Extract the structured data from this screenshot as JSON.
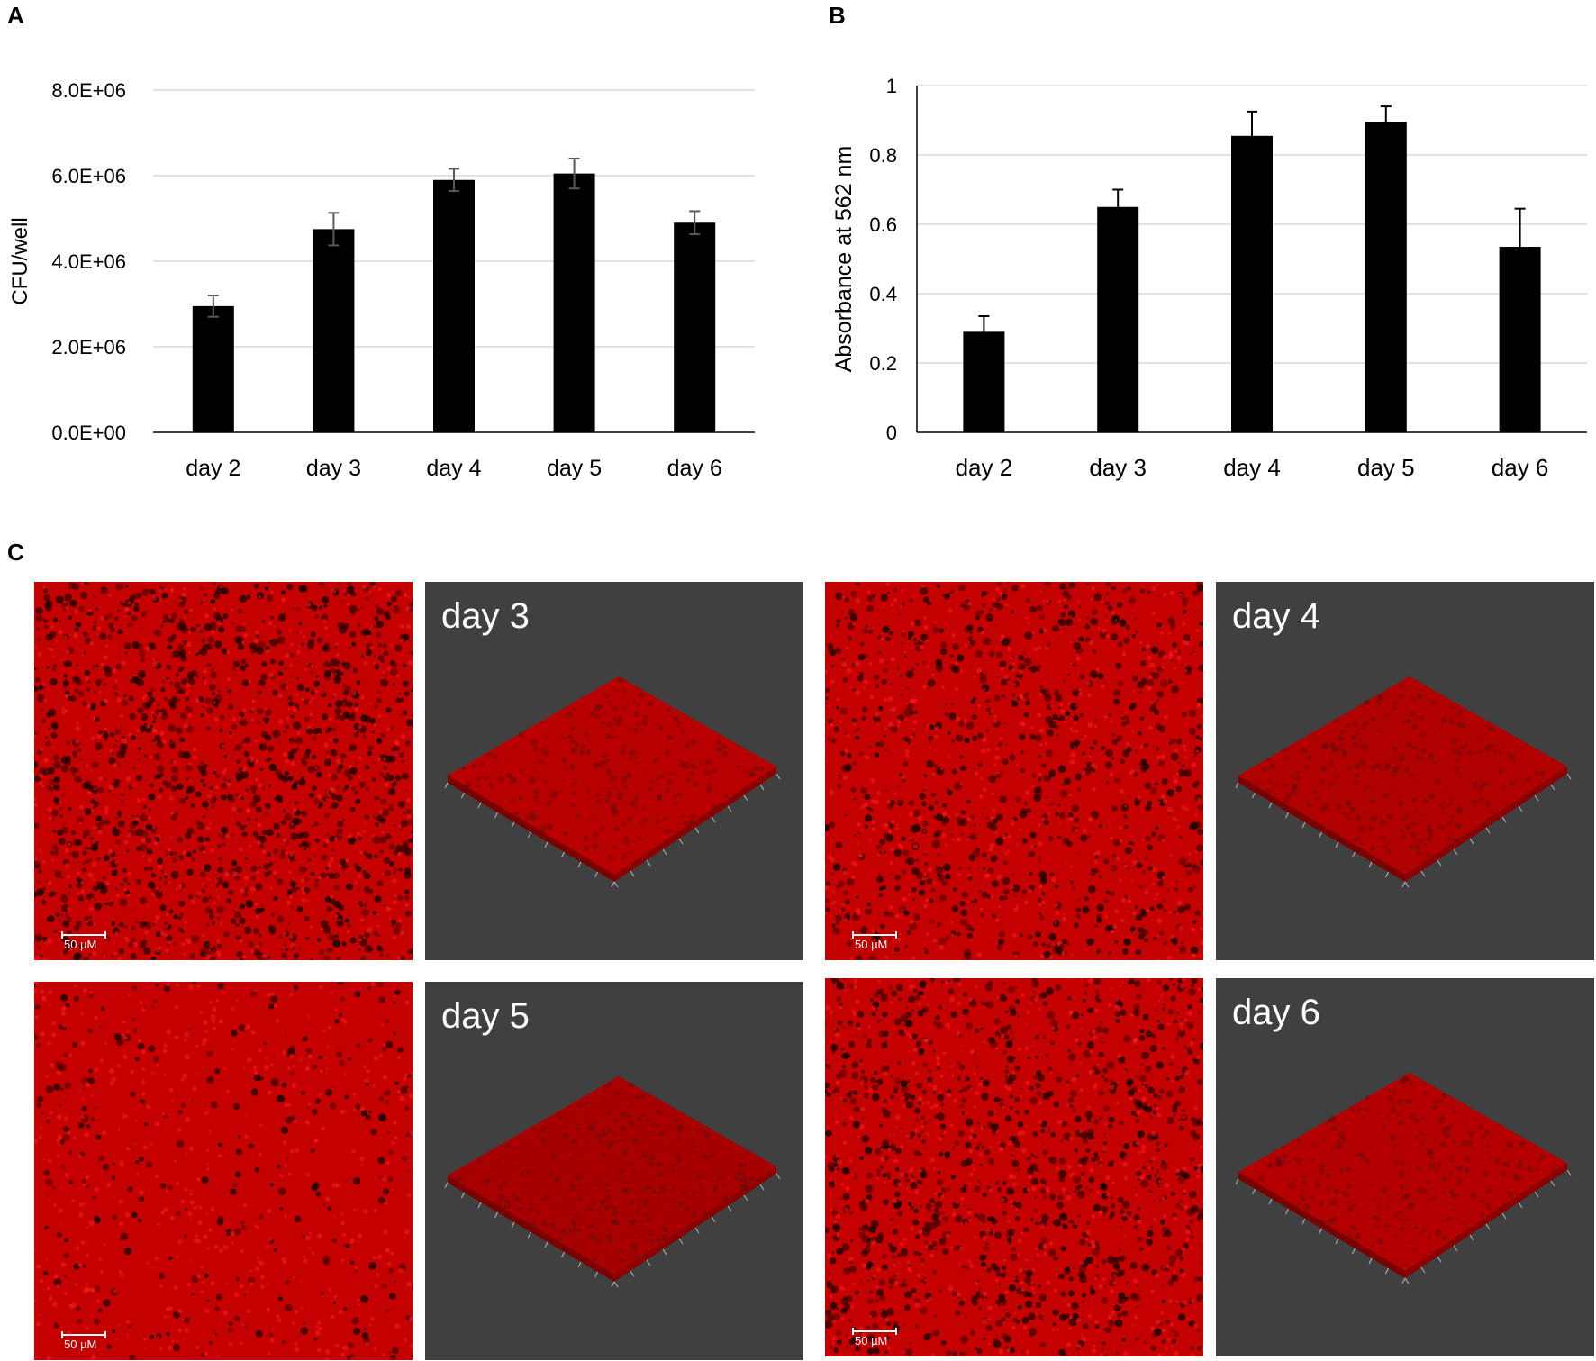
{
  "panels": {
    "a": "A",
    "b": "B",
    "c": "C"
  },
  "chart_data": [
    {
      "type": "bar",
      "panel": "A",
      "categories": [
        "day 2",
        "day 3",
        "day 4",
        "day 5",
        "day 6"
      ],
      "values": [
        2950000,
        4750000,
        5900000,
        6050000,
        4900000
      ],
      "errors": [
        250000,
        380000,
        260000,
        350000,
        270000
      ],
      "ylabel": "CFU/well",
      "xlabel": "",
      "ylim": [
        0,
        8000000
      ],
      "yticks": [
        0,
        2000000,
        4000000,
        6000000,
        8000000
      ],
      "yticklabels": [
        "0.0E+00",
        "2.0E+06",
        "4.0E+06",
        "6.0E+06",
        "8.0E+06"
      ],
      "grid": true,
      "bar_color": "#000000",
      "error_color": "#595959"
    },
    {
      "type": "bar",
      "panel": "B",
      "categories": [
        "day 2",
        "day 3",
        "day 4",
        "day 5",
        "day 6"
      ],
      "values": [
        0.29,
        0.65,
        0.855,
        0.895,
        0.535
      ],
      "errors": [
        0.045,
        0.05,
        0.07,
        0.045,
        0.11
      ],
      "ylabel": "Absorbance at 562 nm",
      "xlabel": "",
      "ylim": [
        0,
        1
      ],
      "yticks": [
        0,
        0.2,
        0.4,
        0.6,
        0.8,
        1
      ],
      "yticklabels": [
        "0",
        "0.2",
        "0.4",
        "0.6",
        "0.8",
        "1"
      ],
      "grid": true,
      "bar_color": "#000000",
      "error_color": "#000000"
    }
  ],
  "micrographs": {
    "scale_label": "50  µM",
    "tiles": [
      {
        "label": "day 3"
      },
      {
        "label": "day 4"
      },
      {
        "label": "day 5"
      },
      {
        "label": "day 6"
      }
    ]
  },
  "colors": {
    "stain": "#c40000",
    "render_bg": "#404040"
  }
}
